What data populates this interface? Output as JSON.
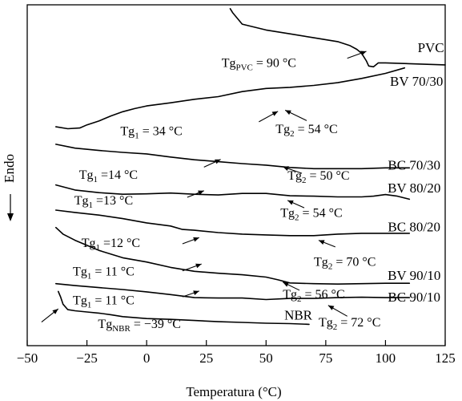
{
  "chart_data": {
    "type": "line",
    "xlabel": "Temperatura (°C)",
    "ylabel": "Endo",
    "xlim": [
      -50,
      125
    ],
    "xticks": [
      "−50",
      "−25",
      "0",
      "25",
      "50",
      "75",
      "100",
      "125"
    ],
    "xtick_values": [
      -50,
      -25,
      0,
      25,
      50,
      75,
      100,
      125
    ],
    "grid": false,
    "legend": "none",
    "series": [
      {
        "name": "PVC",
        "x": [
          35,
          36,
          40,
          50,
          60,
          70,
          80,
          85,
          88,
          90,
          92,
          93,
          95,
          97,
          100,
          110,
          125
        ],
        "y": [
          15,
          14,
          11,
          9.5,
          8.5,
          7.5,
          6.5,
          5.5,
          4.5,
          3.5,
          1.5,
          0.2,
          0,
          1.0,
          1.0,
          0.8,
          0.5
        ]
      },
      {
        "name": "BV 70/30",
        "x": [
          -38,
          -33,
          -28,
          -25,
          -20,
          -15,
          -10,
          -5,
          0,
          10,
          20,
          30,
          40,
          50,
          60,
          70,
          80,
          90,
          100,
          108
        ],
        "y": [
          -15.5,
          -16,
          -15.8,
          -15,
          -14,
          -12.7,
          -11.6,
          -10.8,
          -10.1,
          -9.3,
          -8.4,
          -7.7,
          -6.4,
          -5.6,
          -5.3,
          -4.8,
          -4.1,
          -3.0,
          -1.7,
          -0.3
        ]
      },
      {
        "name": "BC 70/30",
        "x": [
          -38,
          -30,
          -20,
          -10,
          0,
          10,
          20,
          30,
          40,
          50,
          60,
          70,
          80,
          90,
          100,
          110
        ],
        "y": [
          -20,
          -21,
          -21.6,
          -22.1,
          -22.5,
          -23.3,
          -24,
          -24.5,
          -25,
          -25.4,
          -26,
          -26.3,
          -26.3,
          -26.3,
          -26.1,
          -26.1
        ]
      },
      {
        "name": "BV 80/20",
        "x": [
          -38,
          -30,
          -20,
          -10,
          0,
          10,
          20,
          30,
          40,
          50,
          60,
          70,
          80,
          90,
          95,
          100,
          105,
          110
        ],
        "y": [
          -30.5,
          -31.8,
          -32.5,
          -32.9,
          -32.8,
          -32.6,
          -32.9,
          -33.1,
          -32.7,
          -32.7,
          -33.3,
          -33.4,
          -33.6,
          -33.6,
          -33.4,
          -33.0,
          -33.4,
          -34.2
        ]
      },
      {
        "name": "BC 80/20",
        "x": [
          -38,
          -30,
          -20,
          -10,
          0,
          10,
          15,
          20,
          30,
          40,
          50,
          60,
          70,
          80,
          90,
          100,
          110
        ],
        "y": [
          -37,
          -37.6,
          -38.3,
          -39.2,
          -40.3,
          -41.1,
          -42.0,
          -42.2,
          -42.8,
          -43.2,
          -43.4,
          -43.6,
          -43.6,
          -43.2,
          -43.0,
          -43.0,
          -43.0
        ]
      },
      {
        "name": "BV 90/10",
        "x": [
          -38,
          -35,
          -30,
          -25,
          -20,
          -10,
          0,
          10,
          20,
          30,
          40,
          50,
          55,
          60,
          70,
          80,
          90,
          100,
          110
        ],
        "y": [
          -41.5,
          -43.2,
          -44.8,
          -46.1,
          -47.4,
          -49.3,
          -50.4,
          -51.8,
          -52.8,
          -53.3,
          -53.7,
          -54.3,
          -55.0,
          -55.8,
          -56.0,
          -56.1,
          -56.0,
          -55.9,
          -55.9
        ]
      },
      {
        "name": "BC 90/10",
        "x": [
          -38,
          -30,
          -20,
          -10,
          0,
          10,
          20,
          30,
          40,
          50,
          60,
          70,
          80,
          90,
          100,
          110
        ],
        "y": [
          -56,
          -56.5,
          -57,
          -57.5,
          -58.1,
          -58.8,
          -59.6,
          -59.7,
          -59.7,
          -60.1,
          -59.8,
          -59.8,
          -59.6,
          -59.5,
          -59.6,
          -59.6
        ]
      },
      {
        "name": "NBR",
        "x": [
          -37,
          -36,
          -35,
          -33,
          -30,
          -25,
          -20,
          -15,
          -10,
          0,
          10,
          20,
          30,
          40,
          50,
          60,
          68
        ],
        "y": [
          -58.0,
          -59.5,
          -61.3,
          -62.7,
          -63.0,
          -63.3,
          -63.6,
          -64.0,
          -64.5,
          -65.0,
          -65.2,
          -65.5,
          -65.8,
          -66.0,
          -66.2,
          -66.3,
          -66.5
        ]
      }
    ],
    "series_labels": [
      {
        "text": "PVC",
        "x": 119,
        "y": 3.8
      },
      {
        "text": "BV 70/30",
        "x": 113,
        "y": -4.9
      },
      {
        "text": "BC 70/30",
        "x": 112,
        "y": -26.5
      },
      {
        "text": "BV 80/20",
        "x": 112,
        "y": -32.4
      },
      {
        "text": "BC 80/20",
        "x": 112,
        "y": -42.5
      },
      {
        "text": "BV 90/10",
        "x": 112,
        "y": -55.0
      },
      {
        "text": "BC 90/10",
        "x": 112,
        "y": -60.6
      },
      {
        "text": "NBR",
        "x": 63.5,
        "y": -65.3
      }
    ],
    "annotations": [
      {
        "main": "Tg",
        "sub": "PVC",
        "rest": " = 90 °C",
        "tx": 47,
        "ty": 0.0,
        "ax1": 84,
        "ay1": 2.2,
        "ax2": 92,
        "ay2": 4.0
      },
      {
        "main": "Tg",
        "sub": "1",
        "rest": " = 34 °C",
        "tx": 2,
        "ty": -17.6,
        "ax1": 47,
        "ay1": -14.2,
        "ax2": 55,
        "ay2": -11.5
      },
      {
        "main": "Tg",
        "sub": "2",
        "rest": " = 54 °C",
        "tx": 67,
        "ty": -17.1,
        "ax1": 67,
        "ay1": -13.9,
        "ax2": 58,
        "ay2": -11.2
      },
      {
        "main": "Tg",
        "sub": "1",
        "rest": " =14 °C",
        "tx": -16,
        "ty": -28.9,
        "ax1": 24,
        "ay1": -25.9,
        "ax2": 31,
        "ay2": -23.9
      },
      {
        "main": "Tg",
        "sub": "2",
        "rest": " = 50 °C",
        "tx": 72,
        "ty": -29.1,
        "ax1": 65,
        "ay1": -27.5,
        "ax2": 57,
        "ay2": -25.8
      },
      {
        "main": "Tg",
        "sub": "1",
        "rest": " =13 °C",
        "tx": -18,
        "ty": -35.6,
        "ax1": 17,
        "ay1": -33.7,
        "ax2": 24,
        "ay2": -32.0
      },
      {
        "main": "Tg",
        "sub": "2",
        "rest": " = 54 °C",
        "tx": 69,
        "ty": -38.8,
        "ax1": 66,
        "ay1": -36.4,
        "ax2": 59,
        "ay2": -34.5
      },
      {
        "main": "Tg",
        "sub": "1",
        "rest": " =12 °C",
        "tx": -15,
        "ty": -46.5,
        "ax1": 15,
        "ay1": -45.7,
        "ax2": 22,
        "ay2": -44.1
      },
      {
        "main": "Tg",
        "sub": "2",
        "rest": " = 70 °C",
        "tx": 83,
        "ty": -51.4,
        "ax1": 79,
        "ay1": -46.5,
        "ax2": 72,
        "ay2": -44.8
      },
      {
        "main": "Tg",
        "sub": "1",
        "rest": " = 11 °C",
        "tx": -18,
        "ty": -53.9,
        "ax1": 15,
        "ay1": -52.7,
        "ax2": 23,
        "ay2": -50.9
      },
      {
        "main": "Tg",
        "sub": "2",
        "rest": " = 56 °C",
        "tx": 70,
        "ty": -59.8,
        "ax1": 64,
        "ay1": -57.7,
        "ax2": 57,
        "ay2": -55.6
      },
      {
        "main": "Tg",
        "sub": "1",
        "rest": " = 11 °C",
        "tx": -18,
        "ty": -61.3,
        "ax1": 15,
        "ay1": -59.4,
        "ax2": 22,
        "ay2": -57.9
      },
      {
        "main": "Tg",
        "sub": "NBR",
        "rest": " = −39 °C",
        "tx": -3,
        "ty": -67.4,
        "ax1": -44,
        "ay1": -65.9,
        "ax2": -37,
        "ay2": -62.5
      },
      {
        "main": "Tg",
        "sub": "2",
        "rest": " = 72 °C",
        "tx": 85,
        "ty": -67.0,
        "ax1": 84,
        "ay1": -64.4,
        "ax2": 76,
        "ay2": -61.6
      }
    ]
  }
}
